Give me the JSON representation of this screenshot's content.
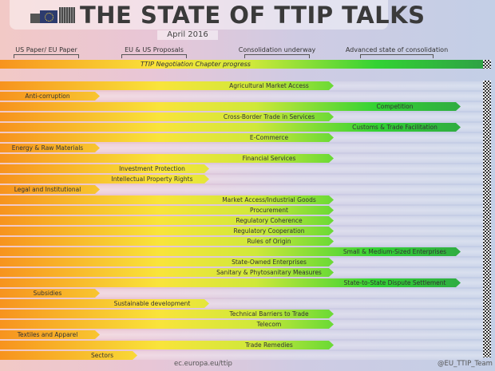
{
  "header": {
    "title": "THE STATE OF TTIP TALKS",
    "date": "April 2016"
  },
  "footer": {
    "url": "ec.europa.eu/ttip",
    "handle": "@EU_TTIP_Team"
  },
  "colors": {
    "start": "#f7931e",
    "mid": "#f9e43a",
    "green": "#33d233",
    "end": "#2ea245"
  },
  "chart_data": {
    "type": "bar",
    "orientation": "horizontal",
    "title": "TTIP Negotiation Chapter progress",
    "stages": [
      "US Paper/ EU Paper",
      "EU & US Proposals",
      "Consolidation underway",
      "Advanced state of consolidation"
    ],
    "categories": [
      "Agricultural Market Access",
      "Anti-corruption",
      "Competition",
      "Cross-Border Trade in Services",
      "Customs & Trade Facilitation",
      "E-Commerce",
      "Energy & Raw Materials",
      "Financial Services",
      "Investment Protection",
      "Intellectual Property Rights",
      "Legal and Institutional",
      "Market Access/Industrial Goods",
      "Procurement",
      "Regulatory Coherence",
      "Regulatory Cooperation",
      "Rules of Origin",
      "Small & Medium-Sized Enterprises",
      "State-Owned Enterprises",
      "Sanitary & Phytosanitary Measures",
      "State-to-State Dispute Settlement",
      "Subsidies",
      "Sustainable development",
      "Technical Barriers to Trade",
      "Telecom",
      "Textiles and Apparel",
      "Trade Remedies",
      "Sectors"
    ],
    "values": [
      3,
      1,
      4,
      3,
      4,
      3,
      1,
      3,
      2,
      2,
      1,
      3,
      3,
      3,
      3,
      3,
      4,
      3,
      3,
      4,
      1,
      2,
      3,
      3,
      1,
      3,
      1.5
    ],
    "value_meaning": "stage reached (1-4)"
  }
}
